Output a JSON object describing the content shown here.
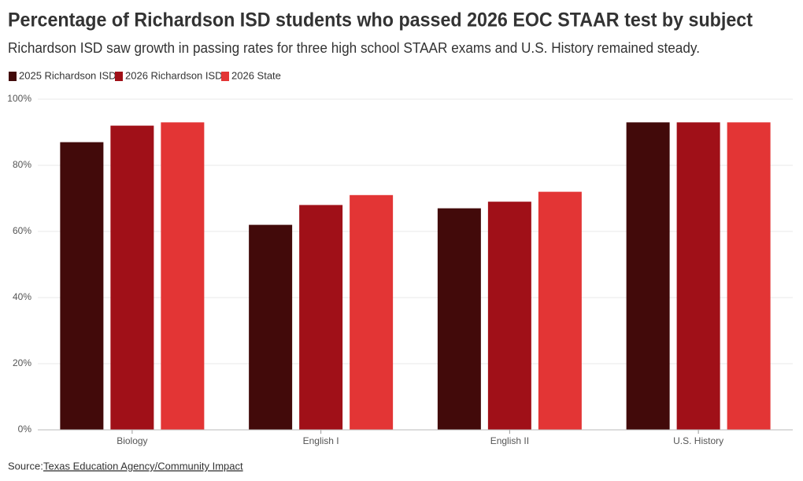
{
  "chart_data": {
    "type": "bar",
    "title": "Percentage of Richardson ISD students who passed 2026 EOC STAAR test by subject",
    "subtitle": "Richardson ISD saw growth in passing rates for three high school STAAR exams and U.S. History remained steady.",
    "categories": [
      "Biology",
      "English I",
      "English II",
      "U.S. History"
    ],
    "series": [
      {
        "name": "2025 Richardson ISD",
        "color": "#420a0a",
        "values": [
          87,
          62,
          67,
          93
        ]
      },
      {
        "name": "2026 Richardson ISD",
        "color": "#a01018",
        "values": [
          92,
          68,
          69,
          93
        ]
      },
      {
        "name": "2026 State",
        "color": "#e33535",
        "values": [
          93,
          71,
          72,
          93
        ]
      }
    ],
    "ylim": [
      0,
      100
    ],
    "yticks": [
      {
        "value": 0,
        "label": "0%"
      },
      {
        "value": 20,
        "label": "20%"
      },
      {
        "value": 40,
        "label": "40%"
      },
      {
        "value": 60,
        "label": "60%"
      },
      {
        "value": 80,
        "label": "80%"
      },
      {
        "value": 100,
        "label": "100%"
      }
    ],
    "grid": true,
    "legend": "top-left",
    "source_label": "Source:",
    "source": "Texas Education Agency/Community Impact"
  }
}
